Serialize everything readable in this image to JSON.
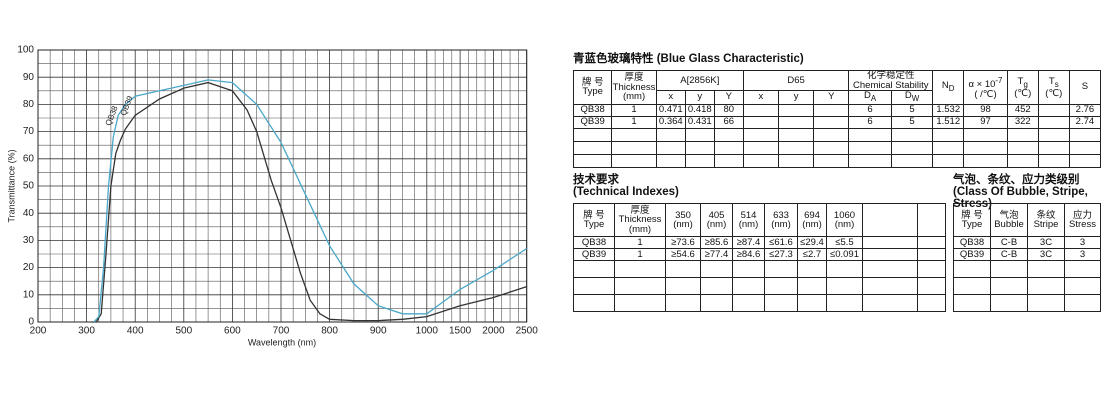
{
  "chart_data": {
    "type": "line",
    "ylabel": "Transmittance (%)",
    "xlabel": "Wavelength (nm)",
    "xlim": [
      200,
      2500
    ],
    "xticks": [
      200,
      300,
      400,
      500,
      600,
      700,
      800,
      900,
      1000,
      1500,
      2000,
      2500
    ],
    "ylim": [
      0,
      100
    ],
    "yticks": [
      0,
      10,
      20,
      30,
      40,
      50,
      60,
      70,
      80,
      90,
      100
    ],
    "grid": true,
    "series": [
      {
        "name": "QB38",
        "color": "#333333",
        "x": [
          310,
          320,
          330,
          340,
          350,
          360,
          370,
          380,
          400,
          450,
          500,
          550,
          600,
          630,
          650,
          680,
          700,
          720,
          740,
          760,
          780,
          800,
          850,
          900,
          950,
          1000,
          1500,
          2000,
          2500
        ],
        "values": [
          0,
          0,
          3,
          25,
          50,
          62,
          67,
          71,
          76,
          82,
          86,
          88,
          85,
          78,
          70,
          52,
          42,
          30,
          18,
          8,
          3,
          1,
          0.5,
          0.5,
          1,
          2,
          6,
          9,
          13
        ]
      },
      {
        "name": "QB39",
        "color": "#4aa8c8",
        "x": [
          315,
          325,
          335,
          345,
          355,
          365,
          380,
          400,
          450,
          500,
          550,
          600,
          650,
          700,
          750,
          800,
          850,
          900,
          950,
          1000,
          1500,
          2000,
          2500
        ],
        "values": [
          0,
          2,
          20,
          50,
          68,
          76,
          80,
          83,
          85,
          87,
          89,
          88,
          80,
          66,
          47,
          28,
          14,
          6,
          3,
          3,
          12,
          19,
          27
        ]
      }
    ]
  },
  "blue_glass": {
    "title": "青蓝色玻璃特性 (Blue Glass Characteristic)",
    "header": {
      "type": [
        "牌 号",
        "Type"
      ],
      "thickness": [
        "厚度",
        "Thickness",
        "(mm)"
      ],
      "a": "A[2856K]",
      "d65": "D65",
      "chem": [
        "化学稳定性",
        "Chemical Stability"
      ],
      "nd": {
        "main": "N",
        "sub": "D"
      },
      "alpha": {
        "main": "α × 10",
        "sup": "-7",
        "unit": "( /℃)"
      },
      "tg": {
        "main": "T",
        "sub": "g",
        "unit": "(℃)"
      },
      "ts": {
        "main": "T",
        "sub": "s",
        "unit": "(℃)"
      },
      "s": "S",
      "sub_a": [
        "x",
        "y",
        "Y"
      ],
      "sub_d65": [
        "x",
        "y",
        "Y"
      ],
      "sub_chem": [
        {
          "main": "D",
          "sub": "A"
        },
        {
          "main": "D",
          "sub": "W"
        }
      ]
    },
    "rows": [
      [
        "QB38",
        "1",
        "0.471",
        "0.418",
        "80",
        null,
        null,
        null,
        "6",
        "5",
        "1.532",
        "98",
        "452",
        null,
        "2.76"
      ],
      [
        "QB39",
        "1",
        "0.364",
        "0.431",
        "66",
        null,
        null,
        null,
        "6",
        "5",
        "1.512",
        "97",
        "322",
        null,
        "2.74"
      ]
    ]
  },
  "technical": {
    "title_cn": "技术要求",
    "title_en": "(Technical Indexes)",
    "header": [
      [
        "牌 号",
        "Type"
      ],
      [
        "厚度",
        "Thickness",
        "(mm)"
      ],
      [
        "350",
        "(nm)"
      ],
      [
        "405",
        "(nm)"
      ],
      [
        "514",
        "(nm)"
      ],
      [
        "633",
        "(nm)"
      ],
      [
        "694",
        "(nm)"
      ],
      [
        "1060",
        "(nm)"
      ]
    ],
    "rows": [
      [
        "QB38",
        "1",
        "≥73.6",
        "≥85.6",
        "≥87.4",
        "≤61.6",
        "≤29.4",
        "≤5.5"
      ],
      [
        "QB39",
        "1",
        "≥54.6",
        "≥77.4",
        "≥84.6",
        "≤27.3",
        "≤2.7",
        "≤0.091"
      ]
    ]
  },
  "stress_class": {
    "title_cn": "气泡、条纹、应力类级别",
    "title_en": "(Class Of Bubble, Stripe, Stress)",
    "header": [
      [
        "牌 号",
        "Type"
      ],
      [
        "气泡",
        "Bubble"
      ],
      [
        "条纹",
        "Stripe"
      ],
      [
        "应力",
        "Stress"
      ]
    ],
    "rows": [
      [
        "QB38",
        "C-B",
        "3C",
        "3"
      ],
      [
        "QB39",
        "C-B",
        "3C",
        "3"
      ]
    ]
  }
}
